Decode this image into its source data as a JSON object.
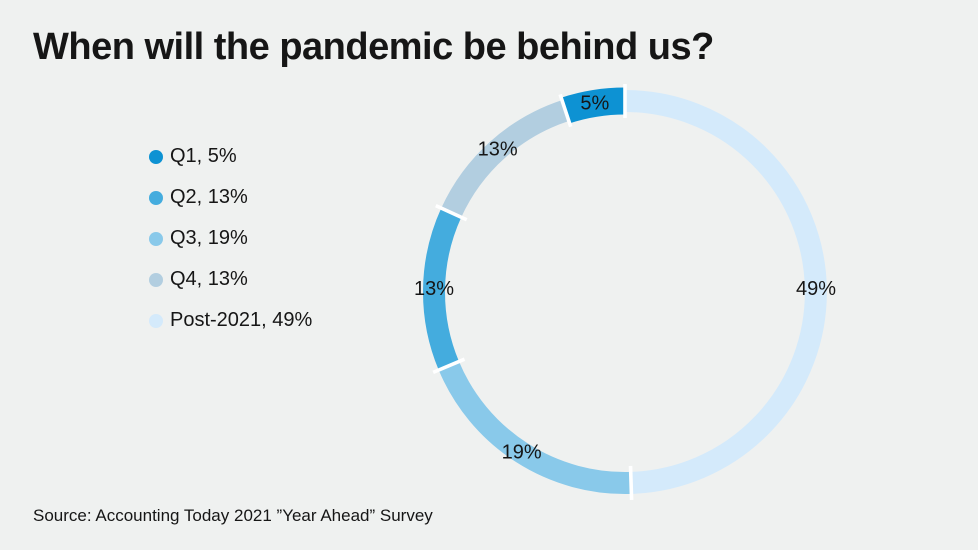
{
  "title": "When will the pandemic be behind us?",
  "source": "Source: Accounting Today 2021 ”Year Ahead” Survey",
  "background_color": "#eff1f0",
  "text_color": "#161616",
  "separator_color": "#ffffff",
  "legend": {
    "items": [
      {
        "label": "Q1, 5%",
        "color": "#0d92d3"
      },
      {
        "label": "Q2, 13%",
        "color": "#44acde"
      },
      {
        "label": "Q3, 19%",
        "color": "#89c9ea"
      },
      {
        "label": "Q4, 13%",
        "color": "#b2cee0"
      },
      {
        "label": "Post-2021, 49%",
        "color": "#d4eafb"
      }
    ]
  },
  "chart_data": {
    "type": "pie",
    "subtype": "donut",
    "title": "When will the pandemic be behind us?",
    "categories": [
      "Q1",
      "Q2",
      "Q3",
      "Q4",
      "Post-2021"
    ],
    "values": [
      5,
      13,
      19,
      13,
      49
    ],
    "unit": "%",
    "colors": [
      "#0d92d3",
      "#44acde",
      "#89c9ea",
      "#b2cee0",
      "#d4eafb"
    ],
    "data_labels": [
      "5%",
      "13%",
      "19%",
      "13%",
      "49%"
    ],
    "clockwise_from_top": [
      "Post-2021",
      "Q3",
      "Q2",
      "Q4",
      "Q1"
    ],
    "emphasized_segment": "Q1",
    "legend_position": "left",
    "label_color": "#161616"
  }
}
